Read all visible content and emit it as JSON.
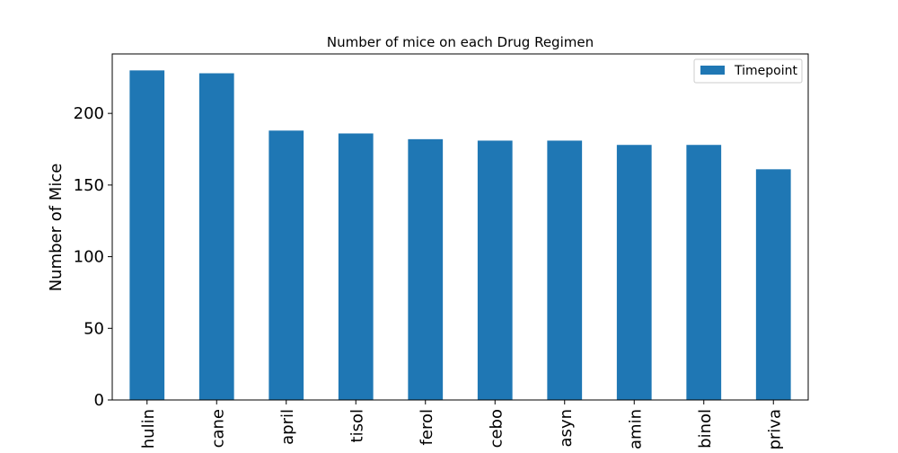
{
  "chart_data": {
    "type": "bar",
    "title": "Number of mice on each Drug Regimen",
    "xlabel": "",
    "ylabel": "Number of Mice",
    "categories": [
      "hulin",
      "cane",
      "april",
      "tisol",
      "ferol",
      "cebo",
      "asyn",
      "amin",
      "binol",
      "priva"
    ],
    "series": [
      {
        "name": "Timepoint",
        "values": [
          230,
          228,
          188,
          186,
          182,
          181,
          181,
          178,
          178,
          161
        ],
        "color": "#1f77b4"
      }
    ],
    "ylim": [
      0,
      241.5
    ],
    "yticks": [
      0,
      50,
      100,
      150,
      200
    ],
    "grid": false,
    "legend_position": "top-right"
  }
}
